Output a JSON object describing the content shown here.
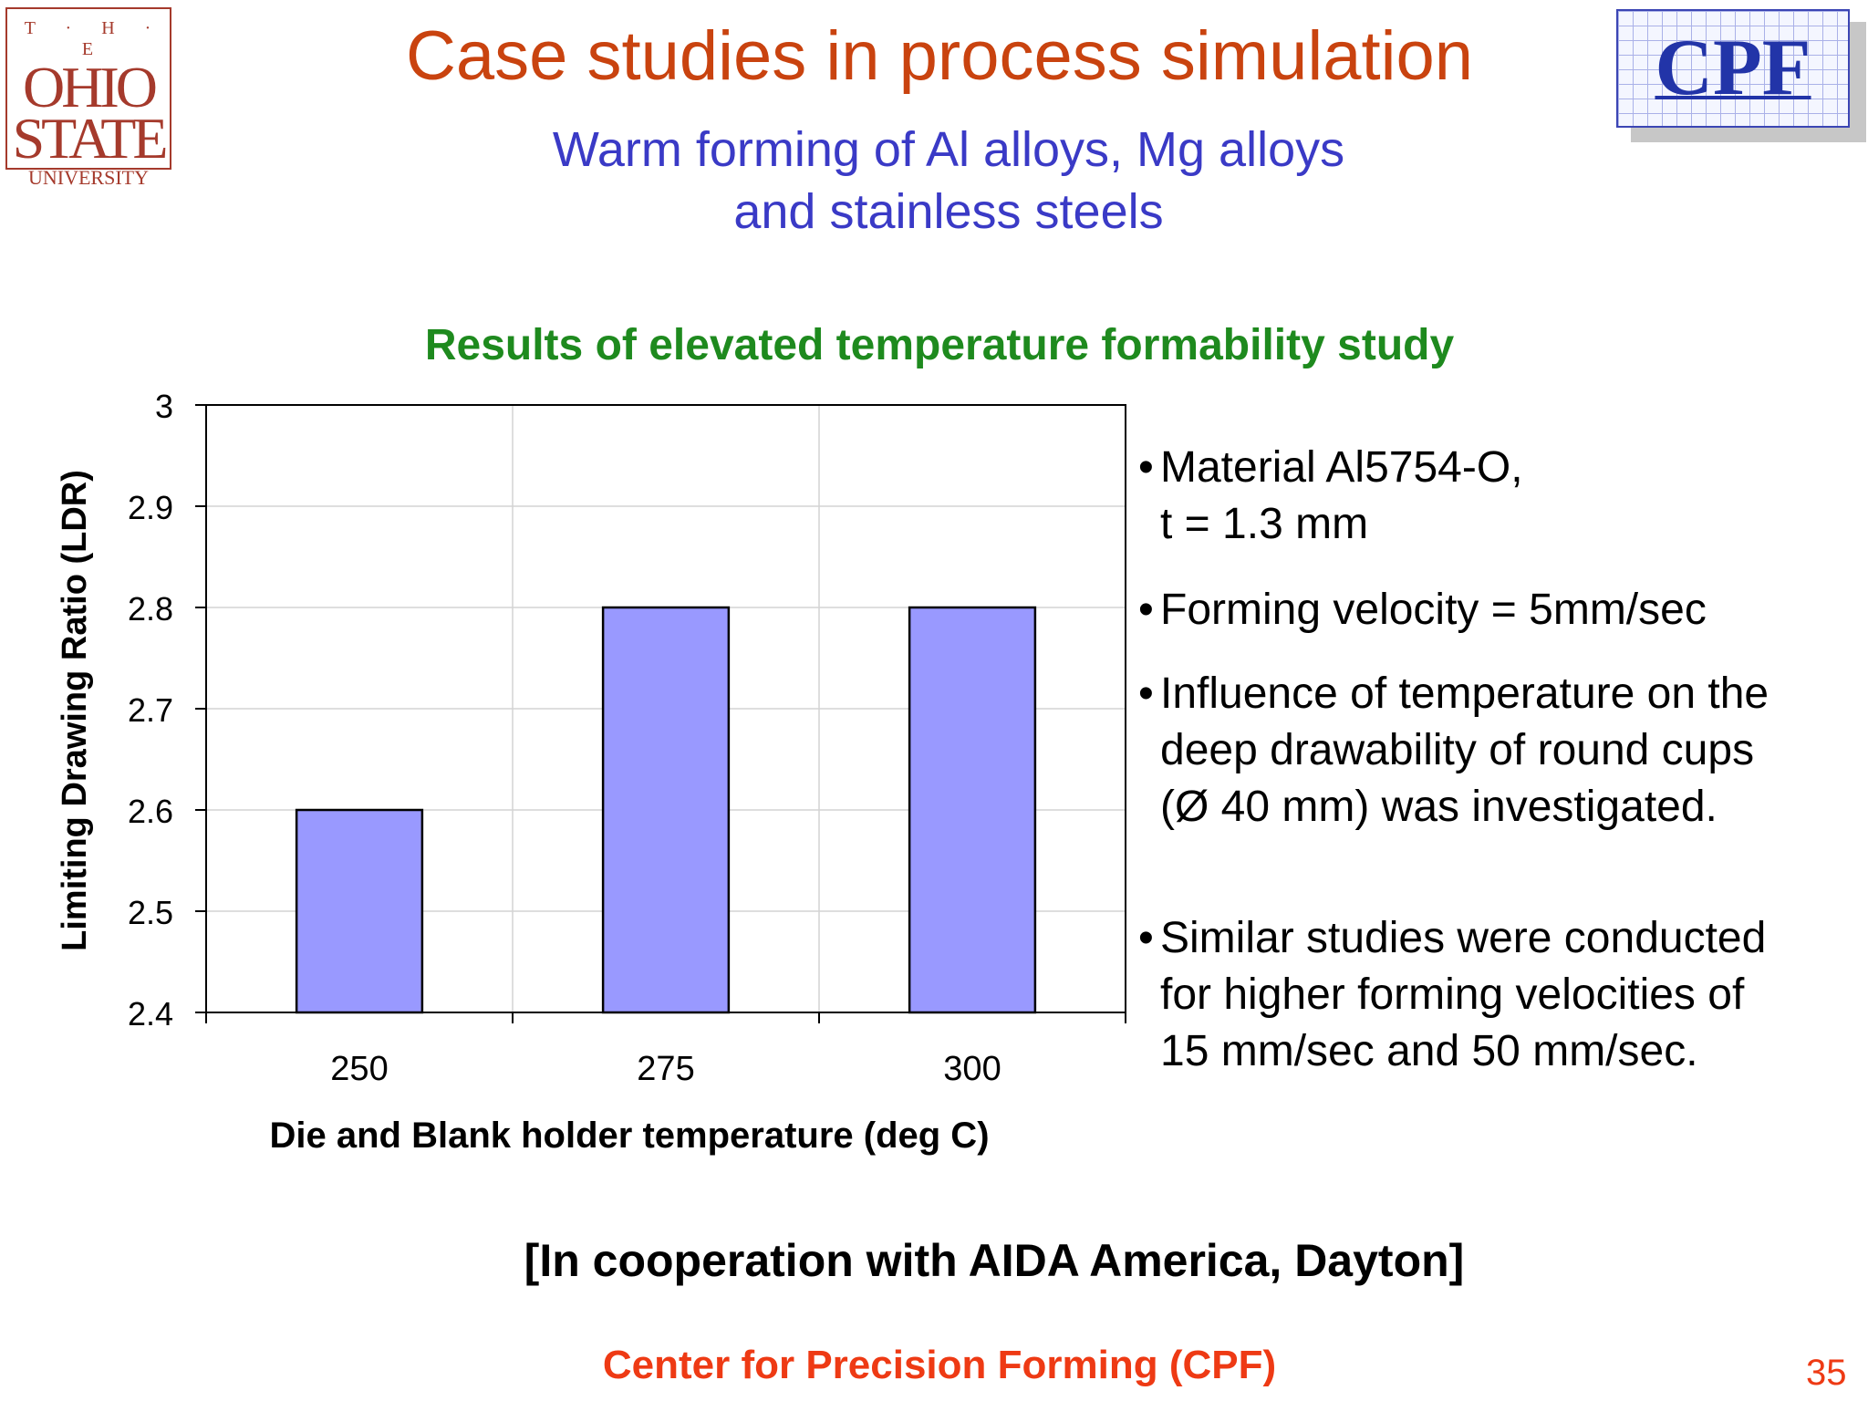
{
  "header": {
    "logo_left_text": [
      "T · H · E",
      "OHIO",
      "STATE",
      "UNIVERSITY"
    ],
    "logo_right_text": "CPF",
    "title": "Case studies in process simulation",
    "subtitle_line1": "Warm forming of Al alloys, Mg alloys",
    "subtitle_line2": "and stainless steels"
  },
  "section_title": "Results of elevated temperature formability study",
  "chart_data": {
    "type": "bar",
    "title": "",
    "categories": [
      "250",
      "275",
      "300"
    ],
    "values": [
      2.6,
      2.8,
      2.8
    ],
    "xlabel": "Die and Blank holder temperature (deg C)",
    "ylabel": "Limiting Drawing Ratio (LDR)",
    "ylim": [
      2.4,
      3.0
    ],
    "yticks": [
      "2.4",
      "2.5",
      "2.6",
      "2.7",
      "2.8",
      "2.9",
      "3"
    ],
    "grid": true,
    "legend": "none",
    "bar_color": "#9999ff"
  },
  "bullets": [
    {
      "lines": [
        "Material Al5754-O,",
        "t = 1.3 mm"
      ]
    },
    {
      "lines": [
        "Forming velocity = 5mm/sec"
      ]
    },
    {
      "lines": [
        "Influence of temperature on the",
        "deep drawability of round cups",
        "(Ø 40 mm) was investigated."
      ]
    },
    {
      "lines": [
        "Similar studies were conducted",
        "for higher forming velocities of",
        "15 mm/sec and 50 mm/sec."
      ]
    }
  ],
  "bullet_symbol": "•",
  "cooperation": "[In cooperation with AIDA America, Dayton]",
  "footer": "Center for Precision Forming (CPF)",
  "page_number": "35",
  "colors": {
    "title": "#c9430f",
    "subtitle": "#3a3ac6",
    "section_title": "#1e8a1e",
    "footer": "#ee3a14"
  }
}
